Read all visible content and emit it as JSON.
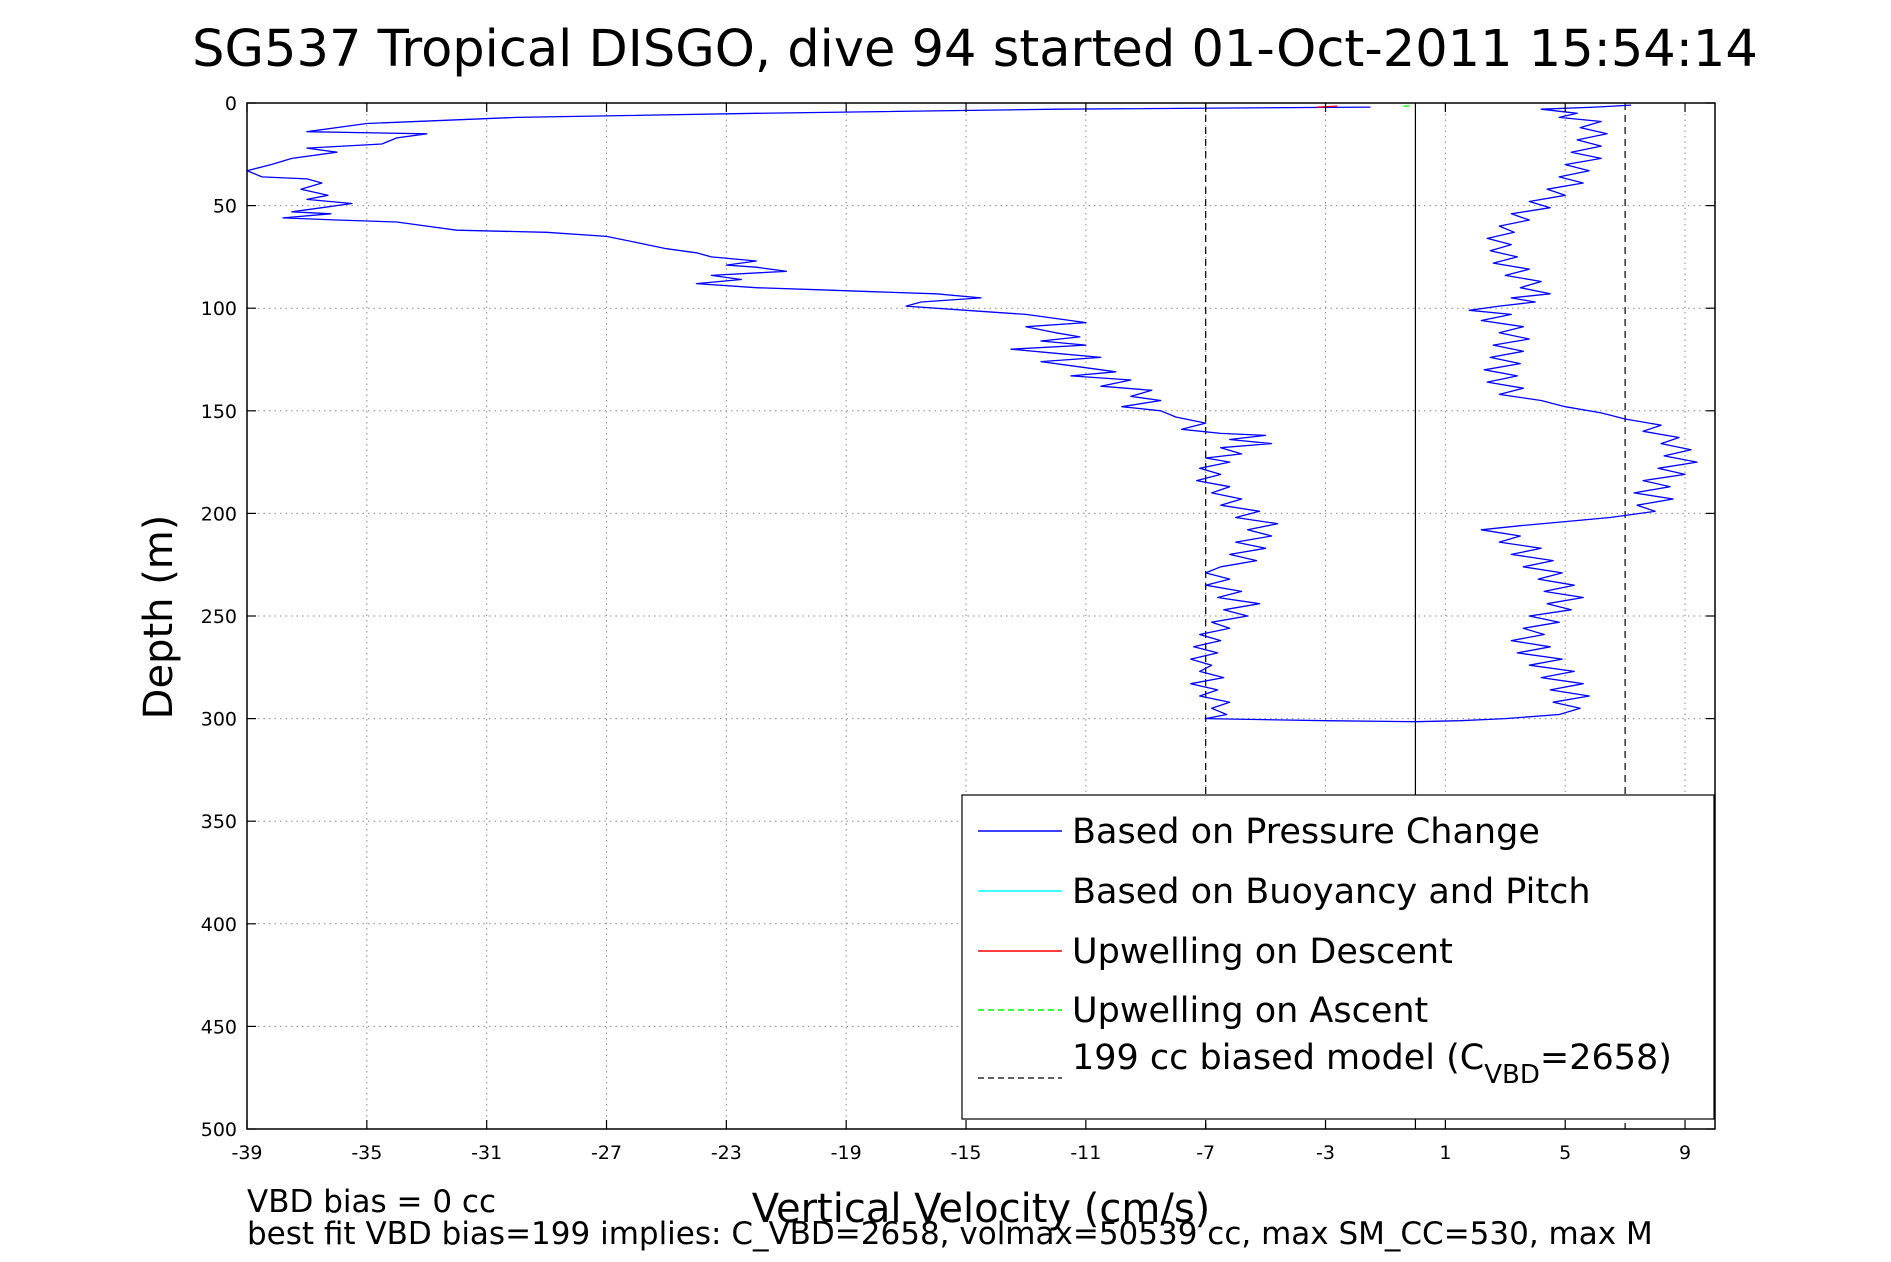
{
  "chart_data": {
    "type": "line",
    "title": "SG537 Tropical DISGO, dive 94 started 01-Oct-2011 15:54:14",
    "xlabel": "Vertical Velocity (cm/s)",
    "ylabel": "Depth (m)",
    "xlim": [
      -39,
      10
    ],
    "ylim": [
      0,
      500
    ],
    "y_reversed": true,
    "grid": true,
    "xticks": [
      -39,
      -35,
      -31,
      -27,
      -23,
      -19,
      -15,
      -11,
      -7,
      -3,
      1,
      5,
      9
    ],
    "yticks": [
      0,
      50,
      100,
      150,
      200,
      250,
      300,
      350,
      400,
      450,
      500
    ],
    "reference_lines": [
      {
        "x": 0,
        "style": "solid",
        "color": "#000000"
      },
      {
        "x": -7,
        "style": "dashed",
        "color": "#000000"
      },
      {
        "x": 7,
        "style": "dashed",
        "color": "#000000"
      }
    ],
    "legend": {
      "position": "bottom-right",
      "entries": [
        {
          "label": "Based on Pressure Change",
          "color": "#0000ff",
          "style": "solid"
        },
        {
          "label": "Based on Buoyancy and Pitch",
          "color": "#00ffff",
          "style": "solid"
        },
        {
          "label": "Upwelling on Descent",
          "color": "#ff0000",
          "style": "solid"
        },
        {
          "label": "Upwelling on Ascent",
          "color": "#00ff00",
          "style": "dashed"
        },
        {
          "label_main": "199 cc biased model (C",
          "label_sub": "VBD",
          "label_tail": "=2658)",
          "color": "#000000",
          "style": "dashed"
        }
      ]
    },
    "series": [
      {
        "role": "descent",
        "color": "#0000ff",
        "points": [
          [
            -1.5,
            2
          ],
          [
            -12,
            3
          ],
          [
            -22,
            5
          ],
          [
            -30,
            7
          ],
          [
            -35,
            10
          ],
          [
            -37,
            14
          ],
          [
            -33,
            15
          ],
          [
            -34,
            17
          ],
          [
            -34.5,
            20
          ],
          [
            -37,
            22
          ],
          [
            -36,
            24
          ],
          [
            -37.5,
            27
          ],
          [
            -38.2,
            30
          ],
          [
            -39,
            33
          ],
          [
            -38.5,
            36
          ],
          [
            -37,
            37
          ],
          [
            -36.5,
            39
          ],
          [
            -37.2,
            42
          ],
          [
            -36.3,
            45
          ],
          [
            -37,
            47
          ],
          [
            -35.5,
            49
          ],
          [
            -36.5,
            51
          ],
          [
            -37.5,
            53
          ],
          [
            -36.2,
            54
          ],
          [
            -37.8,
            56
          ],
          [
            -36,
            57
          ],
          [
            -34,
            58
          ],
          [
            -33,
            60
          ],
          [
            -32,
            62
          ],
          [
            -29,
            63
          ],
          [
            -27,
            65
          ],
          [
            -26,
            68
          ],
          [
            -25,
            71
          ],
          [
            -24,
            73
          ],
          [
            -23.5,
            75
          ],
          [
            -22,
            77
          ],
          [
            -23,
            79
          ],
          [
            -22,
            80
          ],
          [
            -21,
            82
          ],
          [
            -23.5,
            84
          ],
          [
            -22.5,
            86
          ],
          [
            -24,
            88
          ],
          [
            -22,
            90
          ],
          [
            -20,
            91
          ],
          [
            -18,
            92
          ],
          [
            -16,
            93
          ],
          [
            -14.5,
            95
          ],
          [
            -16.5,
            97
          ],
          [
            -17,
            99
          ],
          [
            -15,
            101
          ],
          [
            -13,
            103
          ],
          [
            -12,
            105
          ],
          [
            -11,
            107
          ],
          [
            -13,
            109
          ],
          [
            -12,
            112
          ],
          [
            -11.2,
            114
          ],
          [
            -12.5,
            116
          ],
          [
            -11,
            118
          ],
          [
            -13.5,
            120
          ],
          [
            -12,
            122
          ],
          [
            -10.5,
            124
          ],
          [
            -12.5,
            126
          ],
          [
            -11.5,
            128
          ],
          [
            -10,
            131
          ],
          [
            -11.5,
            133
          ],
          [
            -9.5,
            135
          ],
          [
            -10.5,
            138
          ],
          [
            -8.8,
            140
          ],
          [
            -9.5,
            143
          ],
          [
            -8.5,
            145
          ],
          [
            -9.8,
            148
          ],
          [
            -8.5,
            150
          ],
          [
            -8,
            153
          ],
          [
            -7,
            156
          ],
          [
            -7.8,
            159
          ],
          [
            -6.5,
            161
          ],
          [
            -5,
            162
          ],
          [
            -6.2,
            164
          ],
          [
            -4.8,
            166
          ],
          [
            -6.5,
            168
          ],
          [
            -5.8,
            171
          ],
          [
            -7,
            173
          ],
          [
            -6.2,
            175
          ],
          [
            -7.2,
            178
          ],
          [
            -6.5,
            181
          ],
          [
            -7.3,
            184
          ],
          [
            -6.2,
            187
          ],
          [
            -6.8,
            190
          ],
          [
            -5.8,
            193
          ],
          [
            -6.5,
            196
          ],
          [
            -5.2,
            199
          ],
          [
            -6,
            202
          ],
          [
            -4.6,
            205
          ],
          [
            -5.6,
            208
          ],
          [
            -4.8,
            211
          ],
          [
            -6,
            214
          ],
          [
            -5,
            217
          ],
          [
            -6.2,
            220
          ],
          [
            -5.3,
            223
          ],
          [
            -6.5,
            226
          ],
          [
            -7,
            229
          ],
          [
            -6.2,
            232
          ],
          [
            -7,
            235
          ],
          [
            -5.8,
            238
          ],
          [
            -6.6,
            241
          ],
          [
            -5.2,
            244
          ],
          [
            -6.4,
            247
          ],
          [
            -5.6,
            250
          ],
          [
            -6.8,
            253
          ],
          [
            -6.2,
            256
          ],
          [
            -7.2,
            259
          ],
          [
            -6.5,
            262
          ],
          [
            -7.4,
            265
          ],
          [
            -6.6,
            268
          ],
          [
            -7.5,
            271
          ],
          [
            -6.8,
            274
          ],
          [
            -7.2,
            277
          ],
          [
            -6.4,
            280
          ],
          [
            -7.5,
            283
          ],
          [
            -6.6,
            286
          ],
          [
            -7.2,
            289
          ],
          [
            -6.2,
            292
          ],
          [
            -6.8,
            295
          ],
          [
            -6.3,
            298
          ],
          [
            -7,
            300
          ],
          [
            -3,
            301
          ],
          [
            0,
            301.5
          ]
        ]
      },
      {
        "role": "ascent",
        "color": "#0000ff",
        "points": [
          [
            0,
            301.5
          ],
          [
            1.5,
            301
          ],
          [
            3,
            300
          ],
          [
            4.8,
            298
          ],
          [
            5.5,
            295
          ],
          [
            4.6,
            292
          ],
          [
            5.8,
            289
          ],
          [
            4.5,
            286
          ],
          [
            5.6,
            283
          ],
          [
            4.2,
            280
          ],
          [
            5.3,
            277
          ],
          [
            3.8,
            274
          ],
          [
            4.9,
            271
          ],
          [
            3.4,
            268
          ],
          [
            4.5,
            265
          ],
          [
            3.2,
            262
          ],
          [
            4.3,
            259
          ],
          [
            3.6,
            256
          ],
          [
            4.8,
            253
          ],
          [
            3.8,
            250
          ],
          [
            5.2,
            247
          ],
          [
            4.4,
            244
          ],
          [
            5.6,
            241
          ],
          [
            4.3,
            238
          ],
          [
            5.3,
            235
          ],
          [
            4.1,
            232
          ],
          [
            4.9,
            229
          ],
          [
            3.6,
            226
          ],
          [
            4.6,
            223
          ],
          [
            3.2,
            220
          ],
          [
            4.2,
            217
          ],
          [
            2.8,
            214
          ],
          [
            3.5,
            211
          ],
          [
            2.2,
            208
          ],
          [
            3.5,
            206
          ],
          [
            5,
            204
          ],
          [
            6.5,
            202
          ],
          [
            8,
            199
          ],
          [
            7.4,
            196
          ],
          [
            8.6,
            193
          ],
          [
            7.3,
            190
          ],
          [
            8.5,
            187
          ],
          [
            7.6,
            184
          ],
          [
            9,
            181
          ],
          [
            8.1,
            178
          ],
          [
            9.4,
            175
          ],
          [
            8.3,
            172
          ],
          [
            9.2,
            169
          ],
          [
            8.2,
            166
          ],
          [
            8.8,
            163
          ],
          [
            7.6,
            160
          ],
          [
            8.2,
            157
          ],
          [
            7,
            154
          ],
          [
            6.2,
            151
          ],
          [
            5,
            148
          ],
          [
            4.2,
            145
          ],
          [
            2.8,
            142
          ],
          [
            3.6,
            139
          ],
          [
            2.4,
            136
          ],
          [
            3.4,
            133
          ],
          [
            2.3,
            130
          ],
          [
            3.5,
            127
          ],
          [
            2.5,
            124
          ],
          [
            3.6,
            121
          ],
          [
            2.6,
            118
          ],
          [
            3.8,
            115
          ],
          [
            2.8,
            112
          ],
          [
            3.6,
            109
          ],
          [
            2.2,
            106
          ],
          [
            3.2,
            103
          ],
          [
            1.8,
            101
          ],
          [
            2.8,
            99
          ],
          [
            4,
            97
          ],
          [
            3.2,
            95
          ],
          [
            4.5,
            93
          ],
          [
            3.5,
            90
          ],
          [
            4.2,
            87
          ],
          [
            3.0,
            84
          ],
          [
            3.8,
            81
          ],
          [
            2.6,
            78
          ],
          [
            3.4,
            75
          ],
          [
            2.5,
            72
          ],
          [
            3.2,
            69
          ],
          [
            2.4,
            66
          ],
          [
            3.3,
            63
          ],
          [
            2.8,
            60
          ],
          [
            3.8,
            57
          ],
          [
            3.2,
            54
          ],
          [
            4.5,
            51
          ],
          [
            3.8,
            48
          ],
          [
            5,
            45
          ],
          [
            4.4,
            42
          ],
          [
            5.6,
            39
          ],
          [
            4.8,
            36
          ],
          [
            5.8,
            33
          ],
          [
            5,
            30
          ],
          [
            6.2,
            27
          ],
          [
            5.2,
            24
          ],
          [
            6.2,
            21
          ],
          [
            5.4,
            18
          ],
          [
            6.4,
            15
          ],
          [
            5.5,
            12
          ],
          [
            6.2,
            9
          ],
          [
            4.8,
            7
          ],
          [
            5.4,
            5
          ],
          [
            4.2,
            3
          ],
          [
            6,
            2
          ],
          [
            7.2,
            1
          ]
        ]
      },
      {
        "role": "upwelling-descent",
        "color": "#ff0000",
        "points": [
          [
            -3.3,
            2
          ],
          [
            -2.6,
            1.5
          ]
        ]
      },
      {
        "role": "upwelling-ascent",
        "color": "#00ff00",
        "points": [
          [
            -0.4,
            1.5
          ],
          [
            -0.2,
            1.5
          ]
        ]
      }
    ],
    "footnotes": {
      "line1": "VBD bias = 0 cc",
      "line2": "best fit VBD bias=199 implies: C_VBD=2658, volmax=50539 cc, max SM_CC=530, max M"
    }
  }
}
